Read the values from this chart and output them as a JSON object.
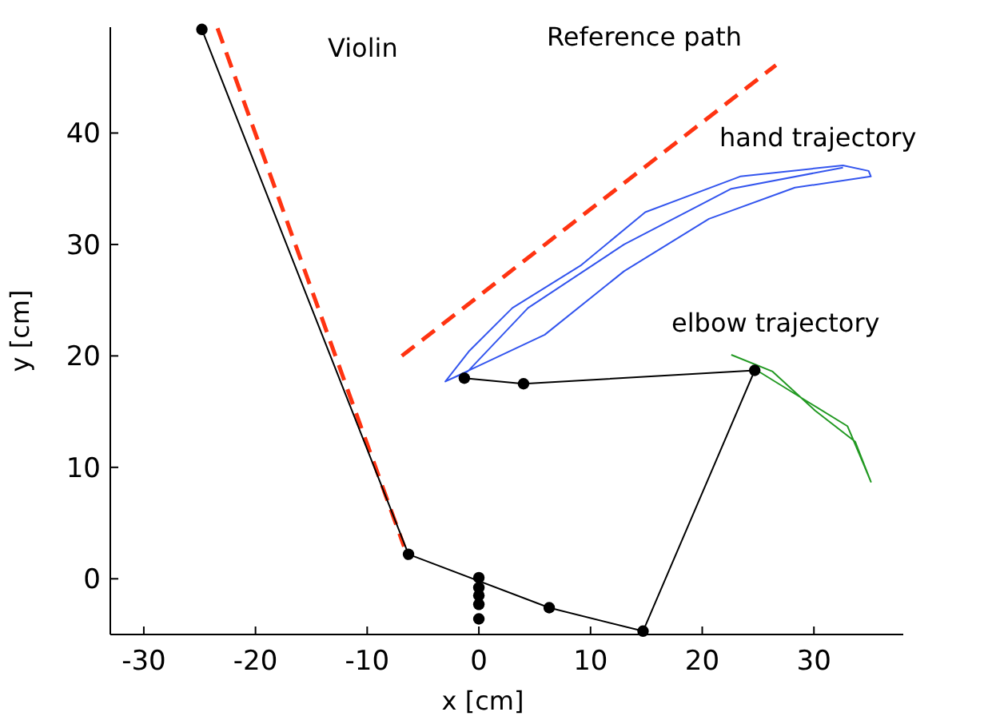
{
  "chart_data": {
    "type": "line",
    "xlabel": "x [cm]",
    "ylabel": "y [cm]",
    "xlim": [
      -33,
      38
    ],
    "xticks": [
      -30,
      -20,
      -10,
      0,
      10,
      20,
      30
    ],
    "ylim": [
      -5,
      49.5
    ],
    "yticks": [
      0,
      10,
      20,
      30,
      40
    ],
    "grid": false,
    "series": [
      {
        "color": "#ff3311",
        "line_style": "dashed",
        "marker": "none",
        "x": [
          -23.4,
          -6.7
        ],
        "values": [
          49.4,
          2.9
        ]
      },
      {
        "color": "#ff3311",
        "line_style": "dashed",
        "marker": "none",
        "x": [
          -6.9,
          26.6
        ],
        "values": [
          20,
          46.1
        ]
      },
      {
        "color": "#3355ee",
        "line_style": "solid",
        "marker": "none",
        "x": [
          -3,
          5.9,
          13,
          20.6,
          28.3,
          35.1,
          34.9,
          32.6,
          23.4,
          14.9,
          9.1,
          3,
          -0.9,
          -3,
          -1,
          4.4,
          13,
          22.6,
          32.6
        ],
        "values": [
          17.7,
          21.9,
          27.6,
          32.3,
          35.1,
          36.1,
          36.6,
          37.1,
          36.1,
          32.9,
          28.1,
          24.3,
          20.4,
          17.7,
          18.6,
          24.3,
          30,
          35,
          36.9
        ]
      },
      {
        "color": "#229922",
        "line_style": "solid",
        "marker": "none",
        "x": [
          22.6,
          26.3,
          30.1,
          33.7,
          35.1,
          34.4,
          33,
          29.1,
          24.9
        ],
        "values": [
          20.1,
          18.6,
          15.1,
          12.3,
          8.7,
          10.4,
          13.7,
          16.1,
          18.7
        ]
      },
      {
        "color": "#000000",
        "line_style": "solid",
        "marker": "circle",
        "x": [
          -24.8,
          -6.3,
          6.3,
          14.7,
          24.7,
          4,
          -1.3
        ],
        "values": [
          49.3,
          2.2,
          -2.6,
          -4.7,
          18.7,
          17.5,
          18
        ]
      },
      {
        "type": "scatter",
        "color": "#000000",
        "marker": "circle",
        "x": [
          0,
          0,
          0,
          0,
          0
        ],
        "values": [
          0.1,
          -0.8,
          -1.5,
          -2.3,
          -3.6
        ]
      }
    ],
    "annotations": [
      "Violin",
      "Reference path",
      "hand trajectory",
      "elbow trajectory"
    ]
  }
}
